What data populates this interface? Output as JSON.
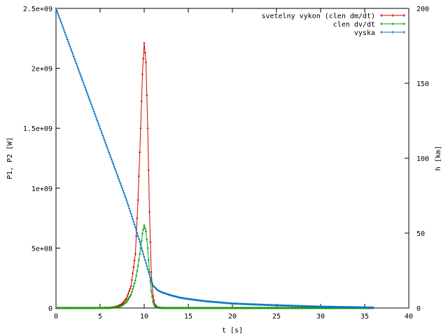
{
  "chart_data": {
    "type": "line",
    "xlabel": "t [s]",
    "ylabel_left": "P1, P2 [W]",
    "ylabel_right": "h [km]",
    "xlim": [
      0,
      40
    ],
    "ylim_left": [
      0,
      2500000000
    ],
    "ylim_right": [
      0,
      200
    ],
    "x_ticks": [
      0,
      5,
      10,
      15,
      20,
      25,
      30,
      35,
      40
    ],
    "x_tick_labels": [
      "0",
      "5",
      "10",
      "15",
      "20",
      "25",
      "30",
      "35",
      "40"
    ],
    "y_left_ticks": [
      0,
      500000000,
      1000000000,
      1500000000,
      2000000000,
      2500000000
    ],
    "y_left_tick_labels": [
      "0",
      "5e+08",
      "1e+09",
      "1.5e+09",
      "2e+09",
      "2.5e+09"
    ],
    "y_right_ticks": [
      0,
      50,
      100,
      150,
      200
    ],
    "y_right_tick_labels": [
      "0",
      "50",
      "100",
      "150",
      "200"
    ],
    "grid": false,
    "legend_position": "top-right",
    "series": [
      {
        "name": "svetelny vykon (clen dm/dt)",
        "axis": "left",
        "color": "#d40000",
        "x": [
          0,
          5,
          6,
          6.5,
          7,
          7.5,
          8,
          8.5,
          9,
          9.3,
          9.6,
          9.8,
          10,
          10.2,
          10.4,
          10.6,
          10.8,
          11,
          11.2,
          11.5,
          12,
          13,
          20,
          30,
          36
        ],
        "values": [
          0,
          0,
          1000000,
          5000000,
          15000000,
          35000000,
          80000000,
          180000000,
          450000000,
          900000000,
          1500000000,
          1950000000,
          2210000000,
          2050000000,
          1500000000,
          800000000,
          300000000,
          100000000,
          30000000,
          5000000,
          0,
          0,
          0,
          0,
          0
        ]
      },
      {
        "name": "clen dv/dt",
        "axis": "left",
        "color": "#00a000",
        "x": [
          0,
          5,
          6,
          6.5,
          7,
          7.5,
          8,
          8.5,
          9,
          9.3,
          9.6,
          9.8,
          10,
          10.2,
          10.4,
          10.6,
          10.8,
          11,
          11.2,
          11.5,
          12,
          13,
          20,
          30,
          36
        ],
        "values": [
          0,
          0,
          1000000,
          3000000,
          8000000,
          20000000,
          50000000,
          110000000,
          230000000,
          350000000,
          500000000,
          620000000,
          690000000,
          640000000,
          500000000,
          300000000,
          140000000,
          50000000,
          15000000,
          3000000,
          0,
          0,
          0,
          0,
          0
        ]
      },
      {
        "name": "vyska",
        "axis": "right",
        "color": "#0070c0",
        "x": [
          0,
          1,
          2,
          3,
          4,
          5,
          6,
          7,
          8,
          9,
          9.5,
          10,
          10.5,
          11,
          11.5,
          12,
          13,
          14,
          15,
          17,
          20,
          22,
          25,
          30,
          36
        ],
        "values": [
          200,
          184,
          168,
          152,
          136,
          120,
          104,
          88,
          72,
          54,
          44,
          34,
          24,
          15,
          12,
          10.5,
          8.5,
          7,
          6,
          4.5,
          3,
          2.5,
          1.8,
          0.9,
          0.3
        ]
      }
    ]
  }
}
